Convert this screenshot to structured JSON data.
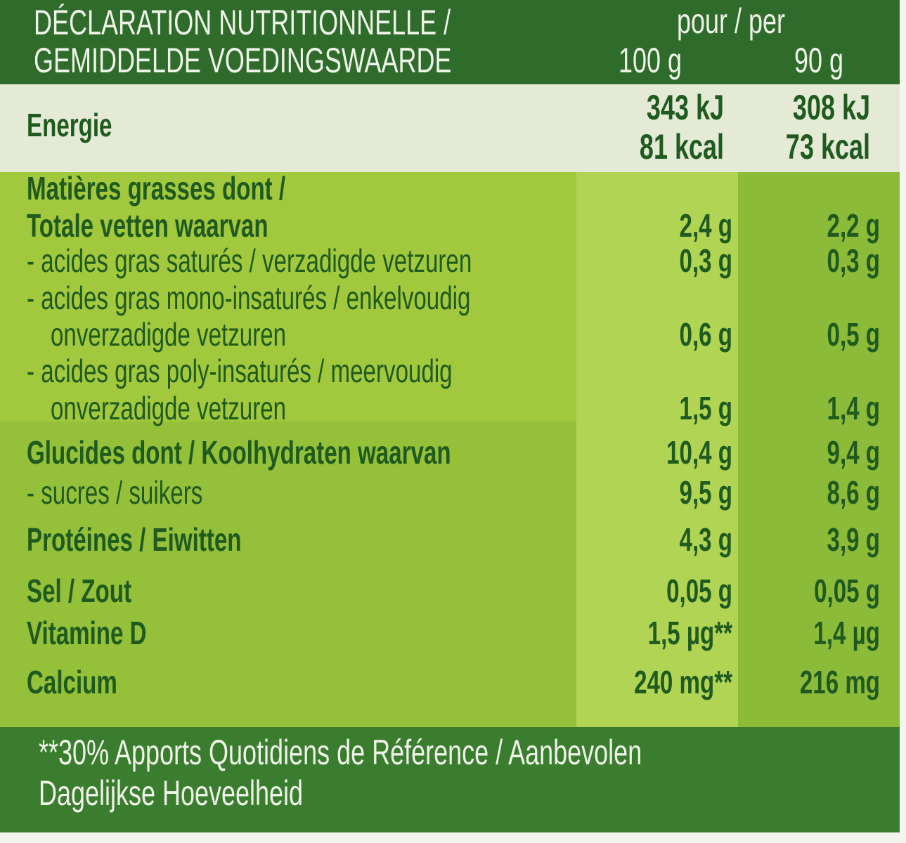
{
  "header": {
    "title": [
      "DÉCLARATION NUTRITIONNELLE /",
      "GEMIDDELDE VOEDINGSWAARDE"
    ],
    "per": "pour / per",
    "columns": [
      "100 g",
      "90 g"
    ]
  },
  "energy": {
    "label": "Energie",
    "per100": [
      "343 kJ",
      "81 kcal"
    ],
    "per90": [
      "308 kJ",
      "73 kcal"
    ]
  },
  "rows": [
    {
      "label": "Matières grasses dont /",
      "bold": true
    },
    {
      "label": "Totale vetten waarvan",
      "bold": true,
      "values": [
        "2,4 g",
        "2,2 g"
      ]
    },
    {
      "label": "- acides gras saturés / verzadigde vetzuren",
      "values": [
        "0,3 g",
        "0,3 g"
      ]
    },
    {
      "label": "- acides gras mono-insaturés / enkelvoudig"
    },
    {
      "label": "onverzadigde vetzuren",
      "indent": true,
      "values": [
        "0,6 g",
        "0,5 g"
      ]
    },
    {
      "label": "- acides gras poly-insaturés / meervoudig"
    },
    {
      "label": "onverzadigde vetzuren",
      "indent": true,
      "values": [
        "1,5 g",
        "1,4 g"
      ]
    },
    {
      "label": "Glucides dont / Koolhydraten waarvan",
      "bold": true,
      "values": [
        "10,4 g",
        "9,4 g"
      ]
    },
    {
      "label": "- sucres / suikers",
      "values": [
        "9,5 g",
        "8,6 g"
      ]
    },
    {
      "label": "Protéines / Eiwitten",
      "bold": true,
      "values": [
        "4,3 g",
        "3,9 g"
      ]
    },
    {
      "label": "Sel / Zout",
      "bold": true,
      "values": [
        "0,05 g",
        "0,05 g"
      ]
    },
    {
      "label": "Vitamine D",
      "bold": true,
      "values": [
        "1,5 µg**",
        "1,4 µg"
      ]
    },
    {
      "label": "Calcium",
      "bold": true,
      "values": [
        "240 mg**",
        "216 mg"
      ]
    }
  ],
  "footnote": [
    "**30% Apports Quotidiens de Référence / Aanbevolen",
    "Dagelijkse Hoeveelheid"
  ]
}
